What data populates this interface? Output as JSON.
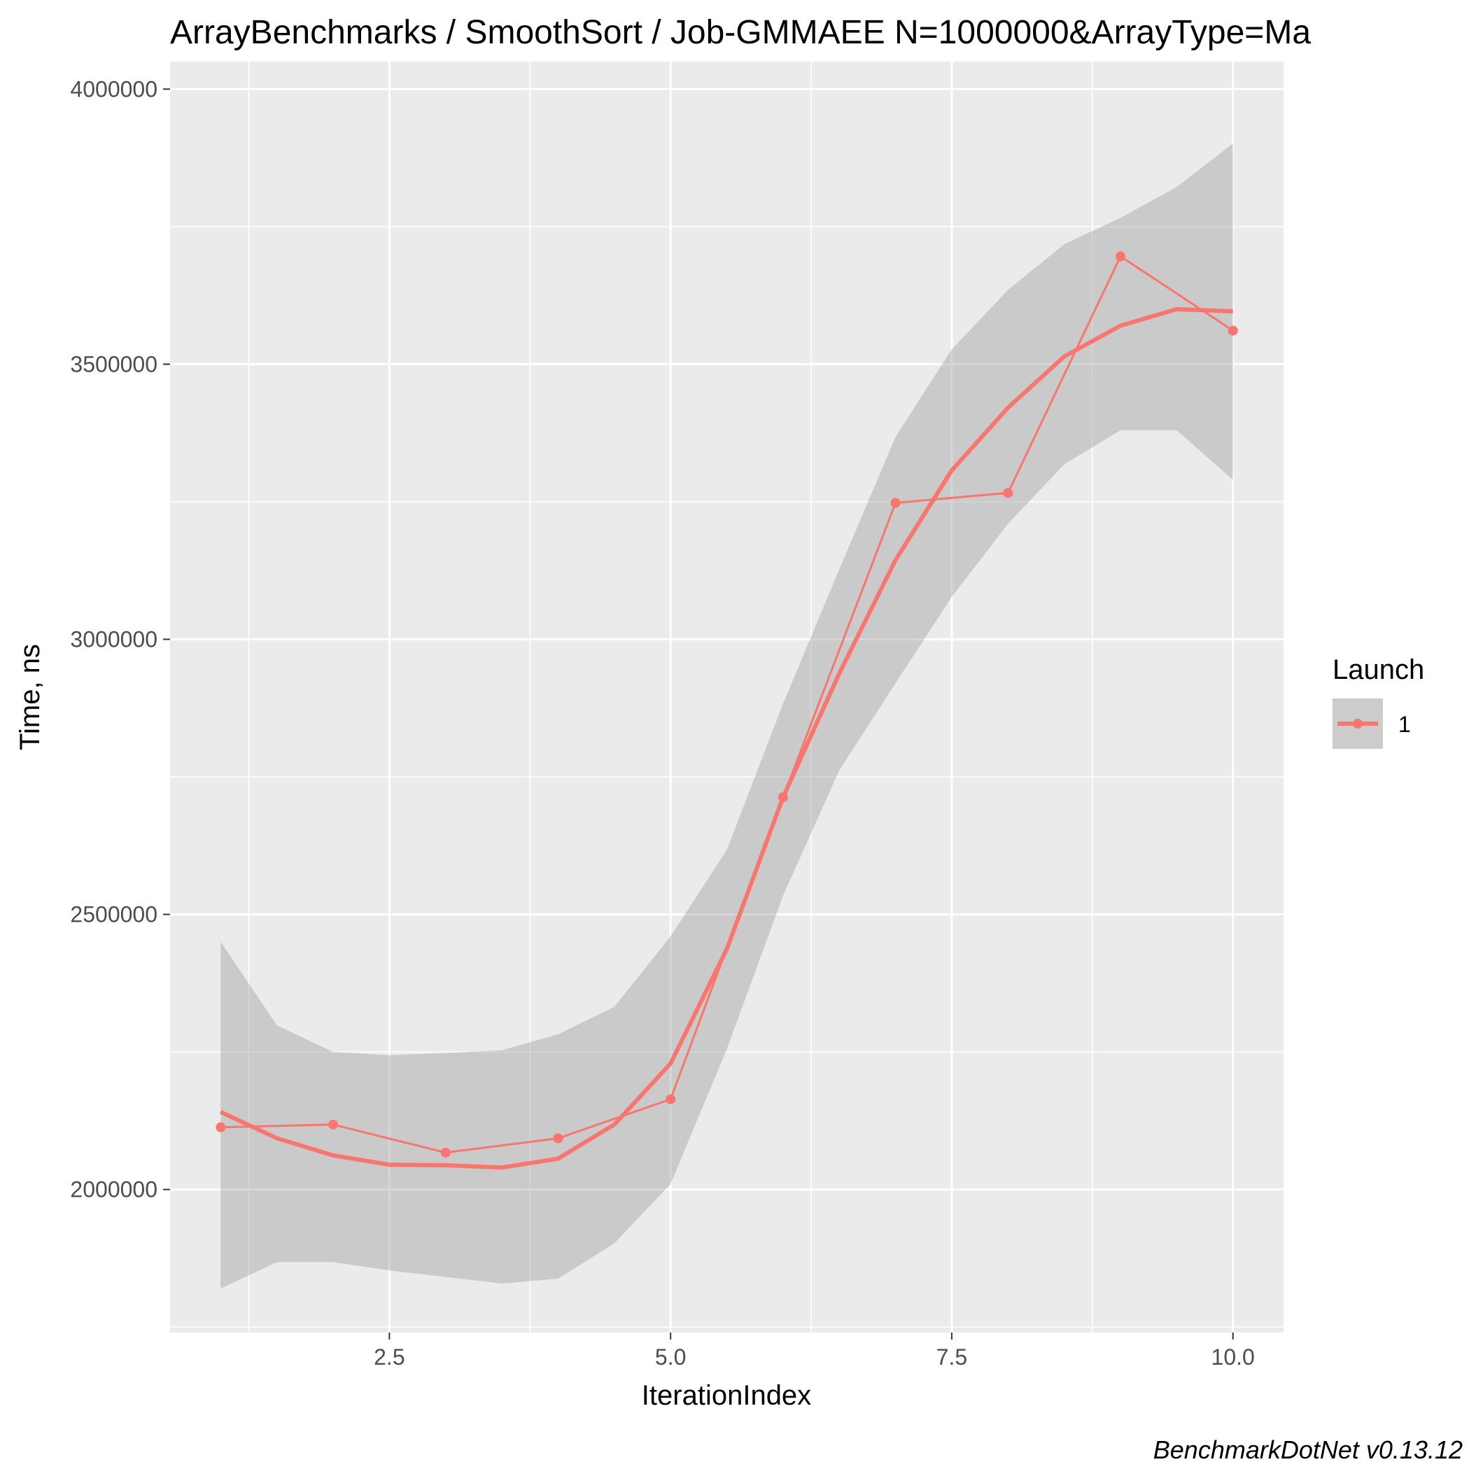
{
  "chart_data": {
    "type": "line",
    "title": "ArrayBenchmarks / SmoothSort / Job-GMMAEE N=1000000&ArrayType=Ma",
    "xlabel": "IterationIndex",
    "ylabel": "Time, ns",
    "xlim": [
      0.55,
      10.45
    ],
    "ylim": [
      1740000,
      4050000
    ],
    "x_ticks": [
      2.5,
      5.0,
      7.5,
      10.0
    ],
    "x_tick_labels": [
      "2.5",
      "5.0",
      "7.5",
      "10.0"
    ],
    "y_ticks": [
      2000000,
      2500000,
      3000000,
      3500000,
      4000000
    ],
    "y_tick_labels": [
      "2000000",
      "2500000",
      "3000000",
      "3500000",
      "4000000"
    ],
    "grid": true,
    "legend": {
      "title": "Launch",
      "position": "right",
      "entries": [
        "1"
      ]
    },
    "series": [
      {
        "name": "1",
        "color": "#f8766d",
        "x": [
          1,
          2,
          3,
          4,
          5,
          6,
          7,
          8,
          9,
          10
        ],
        "values": [
          2113000,
          2118000,
          2067000,
          2093000,
          2164000,
          2713000,
          3248000,
          3266000,
          3696000,
          3561000
        ]
      }
    ],
    "smooth": {
      "x": [
        1.0,
        1.5,
        2.0,
        2.5,
        3.0,
        3.5,
        4.0,
        4.5,
        5.0,
        5.5,
        6.0,
        6.5,
        7.0,
        7.5,
        8.0,
        8.5,
        9.0,
        9.5,
        10.0
      ],
      "values": [
        2141000,
        2093000,
        2062000,
        2045000,
        2044000,
        2040000,
        2056000,
        2118000,
        2229000,
        2437000,
        2713000,
        2938000,
        3144000,
        3307000,
        3421000,
        3514000,
        3570000,
        3600000,
        3596000
      ],
      "ci_lower": [
        1820000,
        1868000,
        1868000,
        1853000,
        1841000,
        1829000,
        1838000,
        1902000,
        2010000,
        2255000,
        2534000,
        2762000,
        2920000,
        3077000,
        3210000,
        3318000,
        3380000,
        3380000,
        3290000
      ],
      "ci_upper": [
        2450000,
        2298000,
        2250000,
        2244000,
        2248000,
        2253000,
        2282000,
        2332000,
        2460000,
        2617000,
        2883000,
        3127000,
        3368000,
        3527000,
        3635000,
        3718000,
        3766000,
        3822000,
        3901000
      ]
    }
  },
  "caption": "BenchmarkDotNet v0.13.12"
}
